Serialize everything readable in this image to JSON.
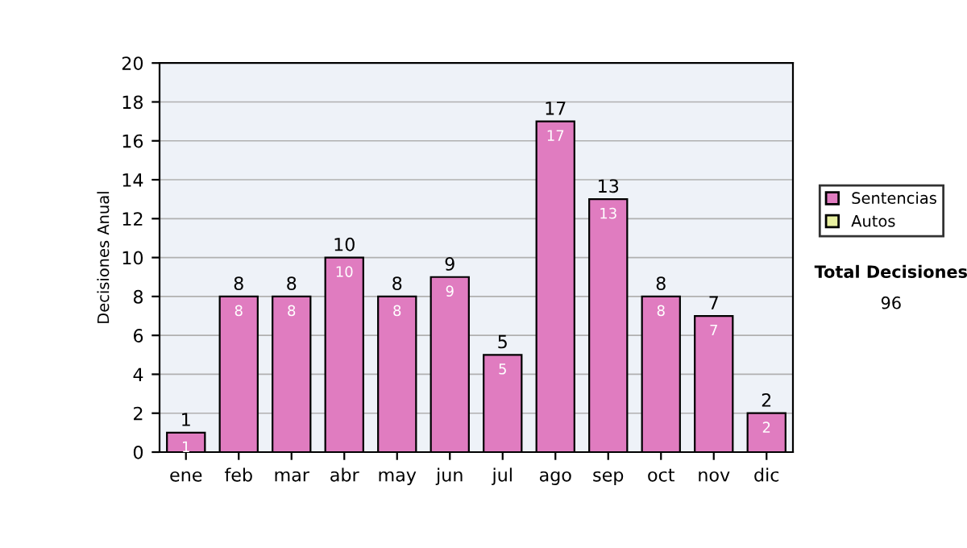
{
  "chart_data": {
    "type": "bar",
    "ylabel": "Decisiones Anual",
    "categories": [
      "ene",
      "feb",
      "mar",
      "abr",
      "may",
      "jun",
      "jul",
      "ago",
      "sep",
      "oct",
      "nov",
      "dic"
    ],
    "series": [
      {
        "name": "Sentencias",
        "color": "#e07cc0",
        "values": [
          1,
          8,
          8,
          10,
          8,
          9,
          5,
          17,
          13,
          8,
          7,
          2
        ],
        "value_labels": [
          "1",
          "8",
          "8",
          "10",
          "8",
          "9",
          "5",
          "17",
          "13",
          "8",
          "7",
          "2"
        ]
      },
      {
        "name": "Autos",
        "color": "#e8f0a0",
        "values": [
          null,
          null,
          null,
          null,
          null,
          null,
          null,
          null,
          null,
          null,
          null,
          null
        ]
      }
    ],
    "stacked": true,
    "totals": [
      "1",
      "8",
      "8",
      "10",
      "8",
      "9",
      "5",
      "17",
      "13",
      "8",
      "7",
      "2"
    ],
    "ylim": [
      0,
      20
    ],
    "yticks": [
      0,
      2,
      4,
      6,
      8,
      10,
      12,
      14,
      16,
      18,
      20
    ],
    "grid": "y",
    "legend": "right",
    "annotations": [
      "Total Decisiones",
      "96"
    ]
  }
}
